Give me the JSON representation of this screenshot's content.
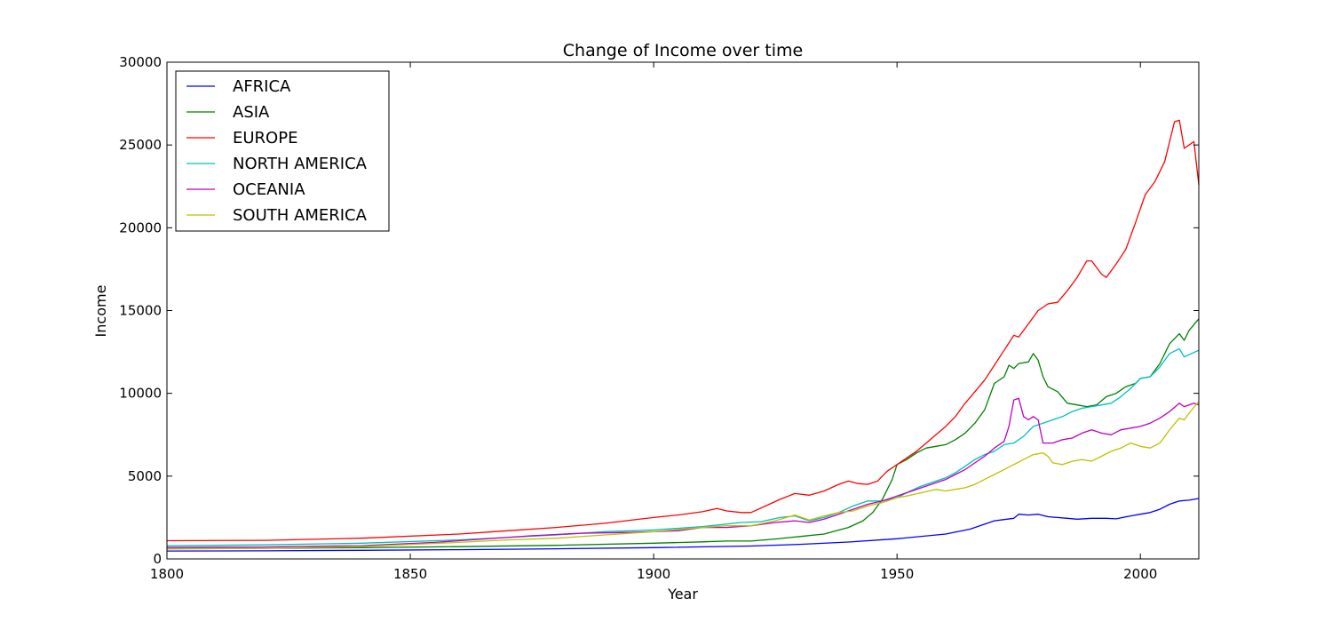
{
  "chart_data": {
    "type": "line",
    "title": "Change of Income over time",
    "xlabel": "Year",
    "ylabel": "Income",
    "xlim": [
      1800,
      2012
    ],
    "ylim": [
      0,
      30000
    ],
    "xticks": [
      1800,
      1850,
      1900,
      1950,
      2000
    ],
    "yticks": [
      0,
      5000,
      10000,
      15000,
      20000,
      25000,
      30000
    ],
    "grid": false,
    "legend_position": "upper-left",
    "series": [
      {
        "name": "AFRICA",
        "color": "#0000ff",
        "points": [
          [
            1800,
            480
          ],
          [
            1820,
            490
          ],
          [
            1840,
            520
          ],
          [
            1860,
            560
          ],
          [
            1880,
            610
          ],
          [
            1900,
            680
          ],
          [
            1920,
            780
          ],
          [
            1930,
            880
          ],
          [
            1940,
            1020
          ],
          [
            1950,
            1220
          ],
          [
            1960,
            1500
          ],
          [
            1965,
            1800
          ],
          [
            1968,
            2100
          ],
          [
            1970,
            2300
          ],
          [
            1972,
            2380
          ],
          [
            1974,
            2450
          ],
          [
            1975,
            2700
          ],
          [
            1977,
            2650
          ],
          [
            1979,
            2700
          ],
          [
            1981,
            2550
          ],
          [
            1985,
            2450
          ],
          [
            1987,
            2400
          ],
          [
            1990,
            2450
          ],
          [
            1993,
            2450
          ],
          [
            1995,
            2420
          ],
          [
            1998,
            2600
          ],
          [
            2000,
            2700
          ],
          [
            2002,
            2800
          ],
          [
            2004,
            3000
          ],
          [
            2006,
            3300
          ],
          [
            2008,
            3500
          ],
          [
            2010,
            3550
          ],
          [
            2012,
            3650
          ]
        ]
      },
      {
        "name": "ASIA",
        "color": "#008000",
        "points": [
          [
            1800,
            620
          ],
          [
            1820,
            640
          ],
          [
            1840,
            680
          ],
          [
            1860,
            740
          ],
          [
            1880,
            820
          ],
          [
            1900,
            950
          ],
          [
            1910,
            1030
          ],
          [
            1915,
            1080
          ],
          [
            1920,
            1080
          ],
          [
            1925,
            1200
          ],
          [
            1930,
            1350
          ],
          [
            1935,
            1500
          ],
          [
            1940,
            1900
          ],
          [
            1943,
            2300
          ],
          [
            1945,
            2800
          ],
          [
            1947,
            3600
          ],
          [
            1949,
            4800
          ],
          [
            1950,
            5700
          ],
          [
            1952,
            6000
          ],
          [
            1954,
            6400
          ],
          [
            1956,
            6700
          ],
          [
            1958,
            6800
          ],
          [
            1960,
            6900
          ],
          [
            1962,
            7200
          ],
          [
            1964,
            7600
          ],
          [
            1966,
            8200
          ],
          [
            1968,
            9000
          ],
          [
            1970,
            10600
          ],
          [
            1972,
            11000
          ],
          [
            1973,
            11700
          ],
          [
            1974,
            11500
          ],
          [
            1975,
            11800
          ],
          [
            1977,
            11900
          ],
          [
            1978,
            12400
          ],
          [
            1979,
            12000
          ],
          [
            1980,
            11000
          ],
          [
            1981,
            10400
          ],
          [
            1983,
            10100
          ],
          [
            1985,
            9400
          ],
          [
            1987,
            9300
          ],
          [
            1989,
            9200
          ],
          [
            1991,
            9300
          ],
          [
            1993,
            9800
          ],
          [
            1995,
            10000
          ],
          [
            1997,
            10400
          ],
          [
            1999,
            10600
          ],
          [
            2000,
            10900
          ],
          [
            2002,
            11000
          ],
          [
            2004,
            11800
          ],
          [
            2006,
            13000
          ],
          [
            2008,
            13600
          ],
          [
            2009,
            13200
          ],
          [
            2010,
            13800
          ],
          [
            2012,
            14500
          ]
        ]
      },
      {
        "name": "EUROPE",
        "color": "#ff0000",
        "points": [
          [
            1800,
            1100
          ],
          [
            1820,
            1120
          ],
          [
            1840,
            1250
          ],
          [
            1860,
            1500
          ],
          [
            1870,
            1700
          ],
          [
            1880,
            1900
          ],
          [
            1890,
            2150
          ],
          [
            1900,
            2500
          ],
          [
            1905,
            2650
          ],
          [
            1910,
            2850
          ],
          [
            1913,
            3050
          ],
          [
            1915,
            2900
          ],
          [
            1918,
            2800
          ],
          [
            1920,
            2800
          ],
          [
            1923,
            3200
          ],
          [
            1926,
            3600
          ],
          [
            1929,
            3950
          ],
          [
            1932,
            3850
          ],
          [
            1935,
            4100
          ],
          [
            1938,
            4500
          ],
          [
            1940,
            4700
          ],
          [
            1942,
            4550
          ],
          [
            1944,
            4500
          ],
          [
            1946,
            4700
          ],
          [
            1948,
            5300
          ],
          [
            1950,
            5700
          ],
          [
            1952,
            6100
          ],
          [
            1954,
            6500
          ],
          [
            1956,
            7000
          ],
          [
            1958,
            7500
          ],
          [
            1960,
            8000
          ],
          [
            1962,
            8600
          ],
          [
            1964,
            9400
          ],
          [
            1966,
            10100
          ],
          [
            1968,
            10800
          ],
          [
            1970,
            11700
          ],
          [
            1972,
            12600
          ],
          [
            1974,
            13500
          ],
          [
            1975,
            13400
          ],
          [
            1977,
            14200
          ],
          [
            1979,
            15000
          ],
          [
            1981,
            15400
          ],
          [
            1983,
            15500
          ],
          [
            1985,
            16200
          ],
          [
            1987,
            17000
          ],
          [
            1989,
            18000
          ],
          [
            1990,
            18000
          ],
          [
            1992,
            17200
          ],
          [
            1993,
            17000
          ],
          [
            1995,
            17800
          ],
          [
            1997,
            18700
          ],
          [
            1999,
            20300
          ],
          [
            2001,
            22000
          ],
          [
            2003,
            22800
          ],
          [
            2005,
            24000
          ],
          [
            2007,
            26400
          ],
          [
            2008,
            26500
          ],
          [
            2009,
            24800
          ],
          [
            2010,
            25000
          ],
          [
            2011,
            25200
          ],
          [
            2012,
            22600
          ]
        ]
      },
      {
        "name": "NORTH AMERICA",
        "color": "#00bfbf",
        "points": [
          [
            1800,
            800
          ],
          [
            1820,
            850
          ],
          [
            1840,
            950
          ],
          [
            1860,
            1150
          ],
          [
            1880,
            1450
          ],
          [
            1890,
            1650
          ],
          [
            1900,
            1750
          ],
          [
            1910,
            1950
          ],
          [
            1918,
            2200
          ],
          [
            1922,
            2250
          ],
          [
            1926,
            2500
          ],
          [
            1929,
            2600
          ],
          [
            1932,
            2300
          ],
          [
            1935,
            2500
          ],
          [
            1938,
            2800
          ],
          [
            1941,
            3200
          ],
          [
            1944,
            3500
          ],
          [
            1947,
            3500
          ],
          [
            1950,
            3700
          ],
          [
            1952,
            4000
          ],
          [
            1955,
            4400
          ],
          [
            1958,
            4700
          ],
          [
            1960,
            4900
          ],
          [
            1962,
            5200
          ],
          [
            1964,
            5600
          ],
          [
            1966,
            6000
          ],
          [
            1968,
            6300
          ],
          [
            1970,
            6500
          ],
          [
            1972,
            6900
          ],
          [
            1974,
            7000
          ],
          [
            1976,
            7400
          ],
          [
            1978,
            8000
          ],
          [
            1980,
            8200
          ],
          [
            1982,
            8400
          ],
          [
            1984,
            8600
          ],
          [
            1986,
            8900
          ],
          [
            1988,
            9100
          ],
          [
            1990,
            9200
          ],
          [
            1992,
            9300
          ],
          [
            1994,
            9400
          ],
          [
            1996,
            9800
          ],
          [
            1998,
            10300
          ],
          [
            2000,
            10900
          ],
          [
            2002,
            11000
          ],
          [
            2004,
            11600
          ],
          [
            2006,
            12400
          ],
          [
            2008,
            12700
          ],
          [
            2009,
            12200
          ],
          [
            2012,
            12600
          ]
        ]
      },
      {
        "name": "OCEANIA",
        "color": "#bf00bf",
        "points": [
          [
            1800,
            700
          ],
          [
            1820,
            720
          ],
          [
            1840,
            800
          ],
          [
            1855,
            1000
          ],
          [
            1865,
            1200
          ],
          [
            1875,
            1400
          ],
          [
            1885,
            1550
          ],
          [
            1895,
            1600
          ],
          [
            1900,
            1650
          ],
          [
            1905,
            1700
          ],
          [
            1910,
            1900
          ],
          [
            1915,
            1900
          ],
          [
            1920,
            2000
          ],
          [
            1925,
            2200
          ],
          [
            1929,
            2300
          ],
          [
            1932,
            2200
          ],
          [
            1935,
            2400
          ],
          [
            1938,
            2700
          ],
          [
            1941,
            3000
          ],
          [
            1944,
            3300
          ],
          [
            1947,
            3500
          ],
          [
            1950,
            3800
          ],
          [
            1952,
            4000
          ],
          [
            1955,
            4300
          ],
          [
            1958,
            4600
          ],
          [
            1960,
            4800
          ],
          [
            1962,
            5100
          ],
          [
            1964,
            5400
          ],
          [
            1966,
            5800
          ],
          [
            1968,
            6200
          ],
          [
            1970,
            6700
          ],
          [
            1972,
            7100
          ],
          [
            1973,
            8000
          ],
          [
            1974,
            9600
          ],
          [
            1975,
            9700
          ],
          [
            1976,
            8600
          ],
          [
            1977,
            8400
          ],
          [
            1978,
            8600
          ],
          [
            1979,
            8400
          ],
          [
            1980,
            7000
          ],
          [
            1982,
            7000
          ],
          [
            1984,
            7200
          ],
          [
            1986,
            7300
          ],
          [
            1988,
            7600
          ],
          [
            1990,
            7800
          ],
          [
            1992,
            7600
          ],
          [
            1994,
            7500
          ],
          [
            1996,
            7800
          ],
          [
            1998,
            7900
          ],
          [
            2000,
            8000
          ],
          [
            2002,
            8200
          ],
          [
            2004,
            8500
          ],
          [
            2006,
            8900
          ],
          [
            2008,
            9400
          ],
          [
            2009,
            9200
          ],
          [
            2010,
            9300
          ],
          [
            2011,
            9400
          ],
          [
            2012,
            9300
          ]
        ]
      },
      {
        "name": "SOUTH AMERICA",
        "color": "#bfbf00",
        "points": [
          [
            1800,
            600
          ],
          [
            1820,
            640
          ],
          [
            1840,
            750
          ],
          [
            1860,
            1000
          ],
          [
            1870,
            1150
          ],
          [
            1880,
            1250
          ],
          [
            1890,
            1450
          ],
          [
            1900,
            1650
          ],
          [
            1910,
            1900
          ],
          [
            1915,
            2000
          ],
          [
            1920,
            2000
          ],
          [
            1925,
            2300
          ],
          [
            1929,
            2650
          ],
          [
            1932,
            2350
          ],
          [
            1935,
            2600
          ],
          [
            1938,
            2800
          ],
          [
            1941,
            2900
          ],
          [
            1944,
            3200
          ],
          [
            1947,
            3400
          ],
          [
            1950,
            3700
          ],
          [
            1952,
            3800
          ],
          [
            1955,
            4000
          ],
          [
            1958,
            4200
          ],
          [
            1960,
            4100
          ],
          [
            1962,
            4200
          ],
          [
            1964,
            4300
          ],
          [
            1966,
            4500
          ],
          [
            1968,
            4800
          ],
          [
            1970,
            5100
          ],
          [
            1972,
            5400
          ],
          [
            1974,
            5700
          ],
          [
            1976,
            6000
          ],
          [
            1978,
            6300
          ],
          [
            1980,
            6400
          ],
          [
            1981,
            6200
          ],
          [
            1982,
            5800
          ],
          [
            1984,
            5700
          ],
          [
            1986,
            5900
          ],
          [
            1988,
            6000
          ],
          [
            1990,
            5900
          ],
          [
            1992,
            6200
          ],
          [
            1994,
            6500
          ],
          [
            1996,
            6700
          ],
          [
            1998,
            7000
          ],
          [
            2000,
            6800
          ],
          [
            2002,
            6700
          ],
          [
            2004,
            7000
          ],
          [
            2006,
            7800
          ],
          [
            2008,
            8500
          ],
          [
            2009,
            8400
          ],
          [
            2010,
            8800
          ],
          [
            2012,
            9500
          ]
        ]
      }
    ]
  }
}
